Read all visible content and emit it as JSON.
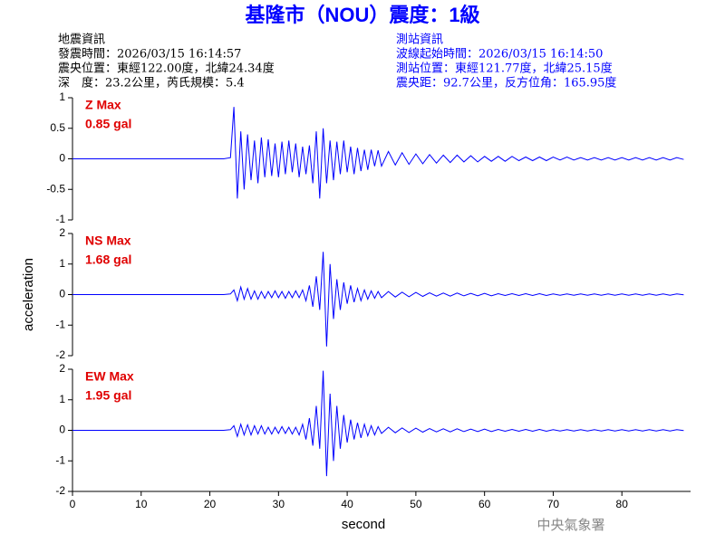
{
  "title": "基隆市（NOU）震度：1級",
  "header_left": [
    "地震資訊",
    "發震時間：2026/03/15 16:14:57",
    "震央位置：東經122.00度，北緯24.34度",
    "深　度：23.2公里，芮氏規模：5.4"
  ],
  "header_right": [
    "測站資訊",
    "波線起始時間：2026/03/15 16:14:50",
    "測站位置：東經121.77度，北緯25.15度",
    "震央距：92.7公里，反方位角：165.95度"
  ],
  "footer": "中央氣象署",
  "chart_data": [
    {
      "type": "line",
      "annotations": [
        "Z Max",
        "0.85 gal"
      ],
      "xlim": [
        0,
        90
      ],
      "ylim": [
        -1,
        1
      ],
      "yticks": [
        -1,
        -0.5,
        0,
        0.5,
        1
      ],
      "x": [
        0,
        22,
        23,
        23.5,
        24,
        24.5,
        25,
        25.5,
        26,
        26.5,
        27,
        27.5,
        28,
        28.5,
        29,
        29.5,
        30,
        30.5,
        31,
        31.5,
        32,
        32.5,
        33,
        33.5,
        34,
        34.5,
        35,
        35.5,
        36,
        36.5,
        37,
        37.5,
        38,
        38.5,
        39,
        39.5,
        40,
        40.5,
        41,
        41.5,
        42,
        42.5,
        43,
        43.5,
        44,
        44.5,
        45,
        46,
        47,
        48,
        49,
        50,
        51,
        52,
        53,
        54,
        55,
        56,
        57,
        58,
        59,
        60,
        61,
        62,
        63,
        64,
        65,
        66,
        67,
        68,
        69,
        70,
        71,
        72,
        73,
        74,
        75,
        76,
        77,
        78,
        79,
        80,
        81,
        82,
        83,
        84,
        85,
        86,
        87,
        88,
        89
      ],
      "series": [
        {
          "color": "#0000ff",
          "values": [
            0,
            0,
            0.02,
            0.85,
            -0.65,
            0.45,
            -0.5,
            0.4,
            -0.35,
            0.3,
            -0.4,
            0.35,
            -0.3,
            0.32,
            -0.28,
            0.25,
            -0.3,
            0.28,
            -0.25,
            0.3,
            -0.22,
            0.25,
            -0.3,
            0.2,
            -0.25,
            0.22,
            -0.4,
            0.45,
            -0.65,
            0.5,
            -0.4,
            0.3,
            -0.35,
            0.28,
            -0.25,
            0.3,
            -0.22,
            0.2,
            -0.25,
            0.18,
            -0.2,
            0.15,
            -0.18,
            0.15,
            -0.12,
            0.14,
            -0.12,
            0.12,
            -0.1,
            0.1,
            -0.09,
            0.08,
            -0.08,
            0.07,
            -0.07,
            0.06,
            -0.06,
            0.06,
            -0.05,
            0.05,
            -0.05,
            0.04,
            -0.04,
            0.04,
            -0.04,
            0.04,
            -0.03,
            0.03,
            -0.03,
            0.03,
            -0.03,
            0.03,
            -0.02,
            0.03,
            -0.02,
            0.02,
            -0.02,
            0.02,
            -0.02,
            0.02,
            -0.02,
            0.02,
            -0.02,
            0.02,
            -0.02,
            0.02,
            -0.02,
            0.02,
            -0.02,
            0.02,
            -0.01
          ]
        }
      ]
    },
    {
      "type": "line",
      "annotations": [
        "NS Max",
        "1.68 gal"
      ],
      "ylabel": "acceleration",
      "xlim": [
        0,
        90
      ],
      "ylim": [
        -2,
        2
      ],
      "yticks": [
        -2,
        -1,
        0,
        1,
        2
      ],
      "x": [
        0,
        22,
        23,
        23.5,
        24,
        24.5,
        25,
        25.5,
        26,
        26.5,
        27,
        27.5,
        28,
        28.5,
        29,
        29.5,
        30,
        30.5,
        31,
        31.5,
        32,
        32.5,
        33,
        33.5,
        34,
        34.5,
        35,
        35.5,
        36,
        36.5,
        37,
        37.5,
        38,
        38.5,
        39,
        39.5,
        40,
        40.5,
        41,
        41.5,
        42,
        42.5,
        43,
        43.5,
        44,
        44.5,
        45,
        46,
        47,
        48,
        49,
        50,
        51,
        52,
        53,
        54,
        55,
        56,
        57,
        58,
        59,
        60,
        61,
        62,
        63,
        64,
        65,
        66,
        67,
        68,
        69,
        70,
        71,
        72,
        73,
        74,
        75,
        76,
        77,
        78,
        79,
        80,
        81,
        82,
        83,
        84,
        85,
        86,
        87,
        88,
        89
      ],
      "series": [
        {
          "color": "#0000ff",
          "values": [
            0,
            0,
            0.02,
            0.15,
            -0.2,
            0.25,
            -0.15,
            0.2,
            -0.15,
            0.12,
            -0.15,
            0.1,
            -0.12,
            0.1,
            -0.1,
            0.12,
            -0.1,
            0.1,
            -0.12,
            0.1,
            -0.1,
            0.12,
            -0.1,
            0.15,
            -0.2,
            0.3,
            -0.4,
            0.6,
            -0.5,
            1.4,
            -1.7,
            1.0,
            -0.8,
            0.5,
            -0.5,
            0.4,
            -0.3,
            0.3,
            -0.25,
            0.2,
            -0.2,
            0.15,
            -0.15,
            0.12,
            -0.12,
            0.1,
            -0.1,
            0.1,
            -0.08,
            0.08,
            -0.07,
            0.07,
            -0.06,
            0.06,
            -0.05,
            0.05,
            -0.05,
            0.05,
            -0.04,
            0.04,
            -0.04,
            0.04,
            -0.04,
            0.03,
            -0.03,
            0.03,
            -0.03,
            0.03,
            -0.03,
            0.03,
            -0.03,
            0.02,
            -0.02,
            0.02,
            -0.02,
            0.02,
            -0.02,
            0.02,
            -0.02,
            0.02,
            -0.02,
            0.02,
            -0.02,
            0.02,
            -0.02,
            0.02,
            -0.02,
            0.02,
            -0.02,
            0.02,
            -0.01
          ]
        }
      ]
    },
    {
      "type": "line",
      "annotations": [
        "EW Max",
        "1.95 gal"
      ],
      "xlabel": "second",
      "xlim": [
        0,
        90
      ],
      "xticks": [
        0,
        10,
        20,
        30,
        40,
        50,
        60,
        70,
        80
      ],
      "ylim": [
        -2,
        2
      ],
      "yticks": [
        -2,
        -1,
        0,
        1,
        2
      ],
      "x": [
        0,
        22,
        23,
        23.5,
        24,
        24.5,
        25,
        25.5,
        26,
        26.5,
        27,
        27.5,
        28,
        28.5,
        29,
        29.5,
        30,
        30.5,
        31,
        31.5,
        32,
        32.5,
        33,
        33.5,
        34,
        34.5,
        35,
        35.5,
        36,
        36.5,
        37,
        37.5,
        38,
        38.5,
        39,
        39.5,
        40,
        40.5,
        41,
        41.5,
        42,
        42.5,
        43,
        43.5,
        44,
        44.5,
        45,
        46,
        47,
        48,
        49,
        50,
        51,
        52,
        53,
        54,
        55,
        56,
        57,
        58,
        59,
        60,
        61,
        62,
        63,
        64,
        65,
        66,
        67,
        68,
        69,
        70,
        71,
        72,
        73,
        74,
        75,
        76,
        77,
        78,
        79,
        80,
        81,
        82,
        83,
        84,
        85,
        86,
        87,
        88,
        89
      ],
      "series": [
        {
          "color": "#0000ff",
          "values": [
            0,
            0,
            0.02,
            0.15,
            -0.2,
            0.2,
            -0.15,
            0.18,
            -0.15,
            0.15,
            -0.12,
            0.15,
            -0.12,
            0.1,
            -0.12,
            0.1,
            -0.1,
            0.12,
            -0.1,
            0.1,
            -0.12,
            0.1,
            -0.15,
            0.2,
            -0.3,
            0.4,
            -0.5,
            0.8,
            -0.6,
            1.95,
            -1.5,
            1.2,
            -1.0,
            0.8,
            -0.6,
            0.5,
            -0.4,
            0.35,
            -0.3,
            0.25,
            -0.25,
            0.2,
            -0.18,
            0.15,
            -0.15,
            0.12,
            -0.1,
            0.1,
            -0.08,
            0.08,
            -0.07,
            0.07,
            -0.06,
            0.06,
            -0.05,
            0.05,
            -0.05,
            0.05,
            -0.04,
            0.04,
            -0.04,
            0.04,
            -0.04,
            0.03,
            -0.03,
            0.03,
            -0.03,
            0.03,
            -0.03,
            0.03,
            -0.03,
            0.02,
            -0.02,
            0.02,
            -0.02,
            0.02,
            -0.02,
            0.02,
            -0.02,
            0.02,
            -0.02,
            0.02,
            -0.02,
            0.02,
            -0.02,
            0.02,
            -0.02,
            0.02,
            -0.02,
            0.02,
            -0.01
          ]
        }
      ]
    }
  ]
}
